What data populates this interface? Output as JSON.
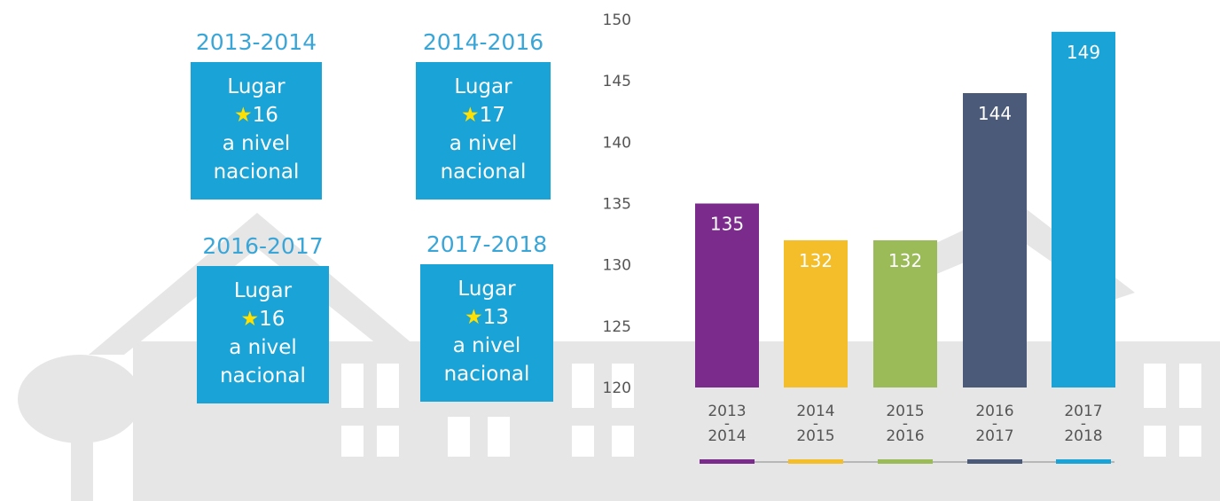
{
  "cards": [
    {
      "period": "2013-2014",
      "label": "Lugar",
      "rank": 16,
      "line3": "a nivel",
      "line4": "nacional"
    },
    {
      "period": "2014-2016",
      "label": "Lugar",
      "rank": 17,
      "line3": "a nivel",
      "line4": "nacional"
    },
    {
      "period": "2016-2017",
      "label": "Lugar",
      "rank": 16,
      "line3": "a nivel",
      "line4": "nacional"
    },
    {
      "period": "2017-2018",
      "label": "Lugar",
      "rank": 13,
      "line3": "a nivel",
      "line4": "nacional"
    }
  ],
  "chart_data": {
    "type": "bar",
    "categories": [
      "2013\n-\n2014",
      "2014\n-\n2015",
      "2015\n-\n2016",
      "2016\n-\n2017",
      "2017\n-\n2018"
    ],
    "values": [
      135,
      132,
      132,
      144,
      149
    ],
    "colors": [
      "#7b2b8c",
      "#f4bd2a",
      "#9bbb59",
      "#4a5a78",
      "#1aa3d6"
    ],
    "ylim": [
      120,
      150
    ],
    "yticks": [
      120,
      125,
      130,
      135,
      140,
      145,
      150
    ],
    "grid": false
  }
}
